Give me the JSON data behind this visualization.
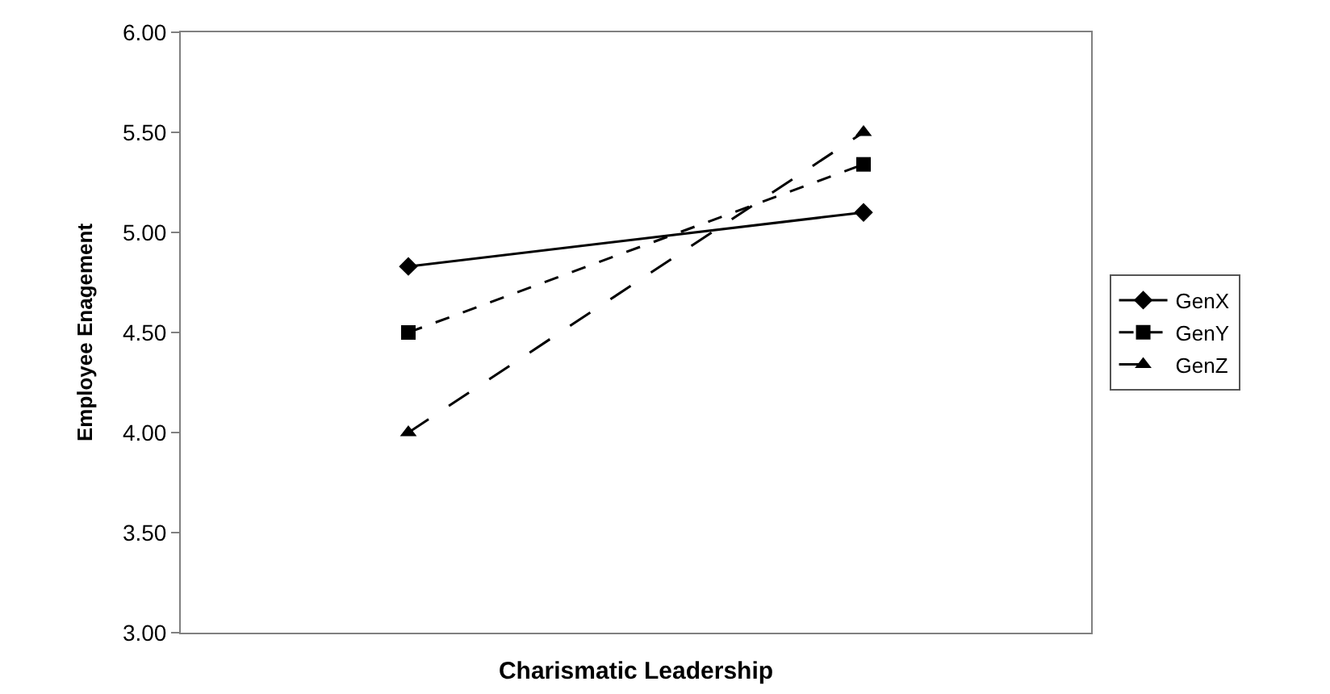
{
  "chart_data": {
    "type": "line",
    "xlabel": "Charismatic Leadership",
    "ylabel": "Employee Enagement",
    "categories": [
      null,
      null
    ],
    "ylim": [
      3,
      6
    ],
    "yticks": [
      {
        "value": 3,
        "label": "3.00"
      },
      {
        "value": 3.5,
        "label": "3.50"
      },
      {
        "value": 4,
        "label": "4.00"
      },
      {
        "value": 4.5,
        "label": "4.50"
      },
      {
        "value": 5,
        "label": "5.00"
      },
      {
        "value": 5.5,
        "label": "5.50"
      },
      {
        "value": 6,
        "label": "6.00"
      }
    ],
    "legend": "right",
    "series": [
      {
        "name": "GenX",
        "color": "#000000",
        "values": [
          4.83,
          5.1
        ],
        "marker": "diamond",
        "line_style": "solid"
      },
      {
        "name": "GenY",
        "color": "#000000",
        "values": [
          4.5,
          5.34
        ],
        "marker": "square",
        "line_style": "dotted"
      },
      {
        "name": "GenZ",
        "color": "#000000",
        "values": [
          4.0,
          5.5
        ],
        "marker": "triangle",
        "line_style": "dashed"
      }
    ]
  }
}
